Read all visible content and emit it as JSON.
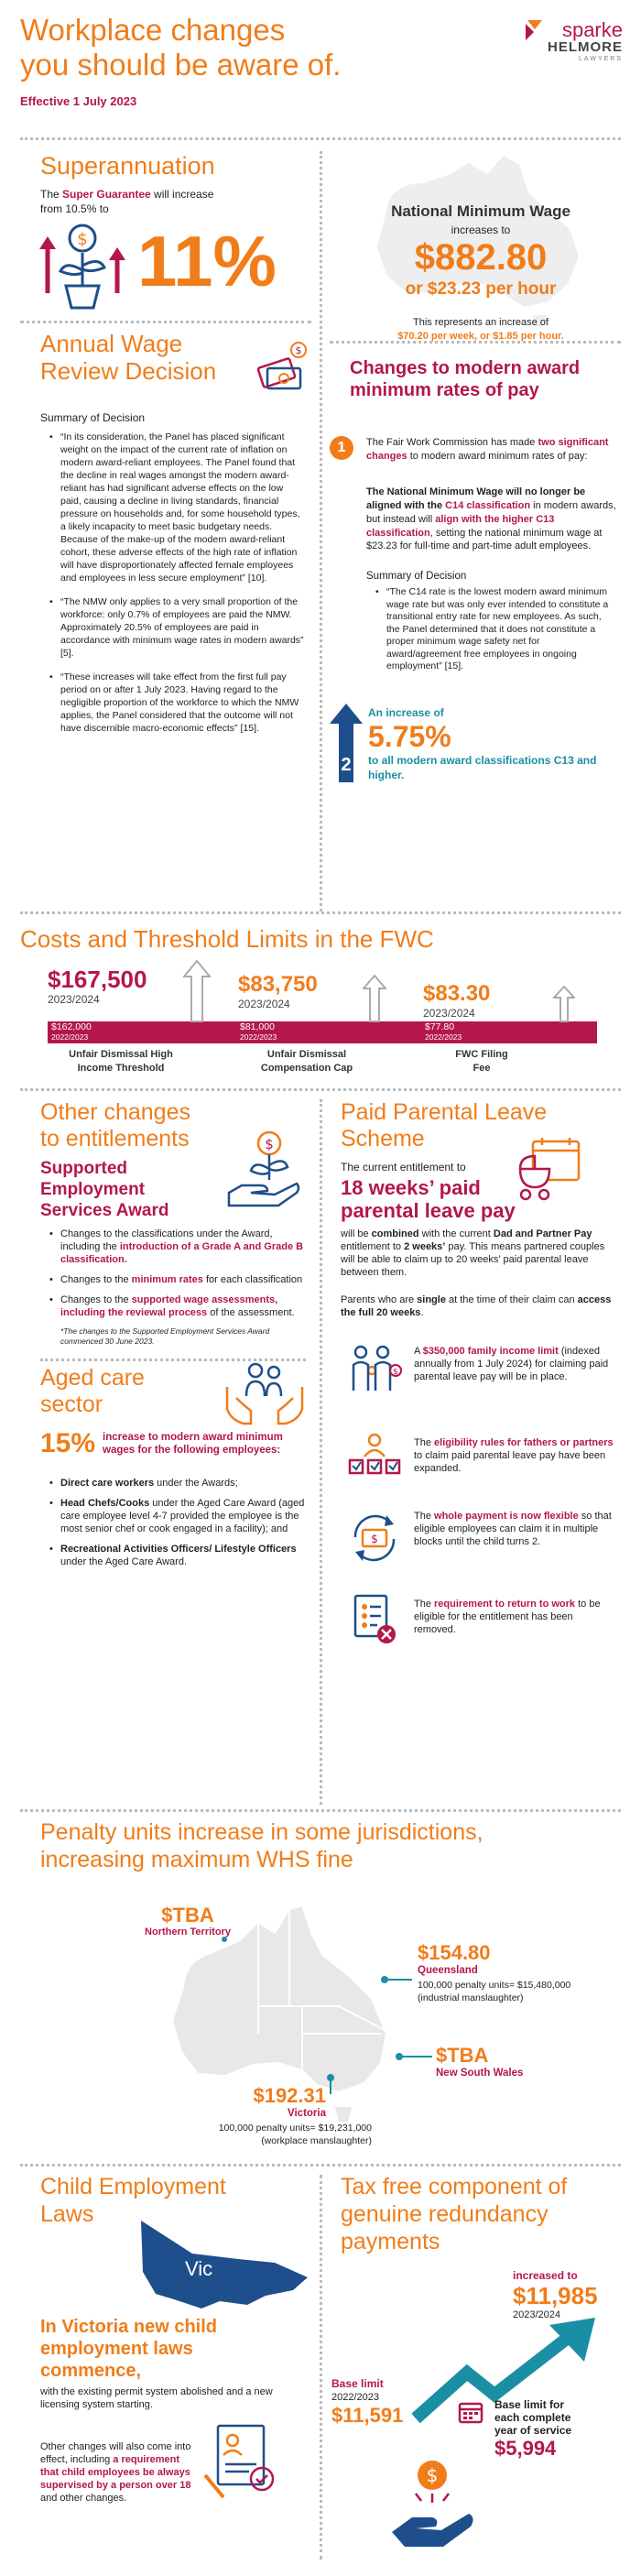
{
  "header": {
    "title_line1": "Workplace changes",
    "title_line2": "you should be aware of.",
    "effective": "Effective 1 July 2023",
    "logo_line1": "sparke",
    "logo_line2": "HELMORE",
    "logo_line3": "LAWYERS"
  },
  "superannuation": {
    "heading": "Superannuation",
    "text_pre": "The ",
    "text_highlight": "Super Guarantee",
    "text_post": " will increase from 10.5% to",
    "big_value": "11%"
  },
  "min_wage": {
    "title": "National Minimum Wage",
    "increases_to": "increases to",
    "big_value": "$882.80",
    "per_hour": "or $23.23 per hour",
    "note_pre": "This represents an increase of",
    "note_values": "$70.20 per week, or $1.85 per hour."
  },
  "annual_wage": {
    "heading_line1": "Annual Wage",
    "heading_line2": "Review Decision",
    "summary_label": "Summary of Decision",
    "bullets": [
      "“In its consideration, the Panel has placed significant weight on the impact of the current rate of inflation on modern award-reliant employees. The Panel found that the decline in real wages amongst the modern award-reliant has had significant adverse effects on the low paid, causing a decline in living standards, financial pressure on households and, for some household types, a likely incapacity to meet basic budgetary needs. Because of the make-up of the modern award-reliant cohort, these adverse effects of the high rate of inflation will have disproportionately affected female employees and employees in less secure employment” [10].",
      "“The NMW only applies to a very small proportion of the workforce: only 0.7% of employees are paid the NMW. Approximately 20.5% of employees are paid in accordance with minimum wage rates in modern awards” [5].",
      "“These increases will take effect from the first full pay period on or after 1 July 2023. Having regard to the negligible proportion of the workforce to which the NMW applies, the Panel considered that the outcome will not have discernible macro-economic effects” [15]."
    ]
  },
  "award_changes": {
    "heading": "Changes to modern award minimum rates of pay",
    "step1_number": "1",
    "step1_text_pre": "The Fair Work Commission has made ",
    "step1_highlight": "two significant changes",
    "step1_text_post": " to modern award minimum rates of pay:",
    "para_a1": "The National Minimum Wage",
    "para_a2": " will no longer be aligned with the ",
    "para_a3": "C14 classification",
    "para_a4": " in modern awards, but instead will ",
    "para_a5": "align with the higher C13 classification",
    "para_a6": ", setting the national minimum wage at $23.23 for full-time and part-time adult employees.",
    "summary_label": "Summary of Decision",
    "quote": "“The C14 rate is the lowest modern award minimum wage rate but was only ever intended to constitute a transitional entry rate for new employees. As such, the Panel determined that it does not constitute a proper minimum wage safety net for award/agreement free employees in ongoing employment” [15].",
    "step2_number": "2",
    "step2_pre": "An increase of",
    "step2_value": "5.75%",
    "step2_post": "to all modern award classifications C13 and higher."
  },
  "costs": {
    "heading": "Costs and Threshold Limits in the FWC",
    "items": [
      {
        "new_value": "$167,500",
        "new_year": "2023/2024",
        "old_value": "$162,000",
        "old_year": "2022/2023",
        "label_line1": "Unfair Dismissal High",
        "label_line2": "Income Threshold"
      },
      {
        "new_value": "$83,750",
        "new_year": "2023/2024",
        "old_value": "$81,000",
        "old_year": "2022/2023",
        "label_line1": "Unfair Dismissal",
        "label_line2": "Compensation Cap"
      },
      {
        "new_value": "$83.30",
        "new_year": "2023/2024",
        "old_value": "$77.80",
        "old_year": "2022/2023",
        "label_line1": "FWC Filing",
        "label_line2": "Fee"
      }
    ]
  },
  "other_changes": {
    "heading_line1": "Other changes",
    "heading_line2": "to entitlements",
    "sub_line1": "Supported",
    "sub_line2": "Employment",
    "sub_line3": "Services Award",
    "b1_pre": "Changes to the classifications under the Award, including the ",
    "b1_highlight": "introduction of a Grade A and Grade B classification.",
    "b2_pre": "Changes to the ",
    "b2_highlight": "minimum rates",
    "b2_post": " for each classification",
    "b3_pre": "Changes to the ",
    "b3_highlight": "supported wage assessments, including the reviewal process",
    "b3_post": " of the assessment.",
    "footnote": "*The changes to the Supported Employment Services Award commenced 30 June 2023."
  },
  "aged_care": {
    "heading_line1": "Aged care",
    "heading_line2": "sector",
    "pct": "15%",
    "lead": "increase to modern award minimum wages for the following employees:",
    "b1_bold": "Direct care workers",
    "b1_rest": " under the Awards;",
    "b2_bold": "Head Chefs/Cooks",
    "b2_rest": " under the Aged Care Award (aged care employee level 4-7 provided the employee is the most senior chef or cook engaged in a facility); and",
    "b3_bold": "Recreational Activities Officers/ Lifestyle Officers",
    "b3_rest": " under the Aged Care Award."
  },
  "parental_leave": {
    "heading_line1": "Paid Parental Leave",
    "heading_line2": "Scheme",
    "current": "The current entitlement to",
    "big_line1": "18 weeks’ paid",
    "big_line2": "parental leave pay",
    "p1_pre": "will be ",
    "p1_b1": "combined",
    "p1_mid": " with the current ",
    "p1_b2": "Dad and Partner Pay",
    "p1_mid2": " entitlement to ",
    "p1_b3": "2 weeks’",
    "p1_post": " pay. This means partnered couples will be able to claim up to 20 weeks’ paid parental leave between them.",
    "p2_pre": "Parents who are ",
    "p2_b1": "single",
    "p2_mid": " at the time of their claim can ",
    "p2_b2": "access the full 20 weeks",
    "p2_post": ".",
    "items": [
      {
        "pre": "A ",
        "highlight": "$350,000 family income limit",
        "post": " (indexed annually from 1 July 2024) for claiming paid parental leave pay will be in place."
      },
      {
        "pre": "The ",
        "highlight": "eligibility rules for fathers or partners",
        "post": " to claim paid parental leave pay have been expanded."
      },
      {
        "pre": "The ",
        "highlight": "whole payment is now flexible",
        "post": " so that eligible employees can claim it in multiple blocks until the child turns 2."
      },
      {
        "pre": "The ",
        "highlight": "requirement to return to work",
        "post": " to be eligible for the entitlement has been removed."
      }
    ]
  },
  "penalty": {
    "heading_line1": "Penalty units increase in some jurisdictions,",
    "heading_line2": "increasing maximum WHS fine",
    "nt_value": "$TBA",
    "nt_label": "Northern Territory",
    "qld_value": "$154.80",
    "qld_label": "Queensland",
    "qld_detail1": "100,000 penalty units= $15,480,000",
    "qld_detail2": "(industrial manslaughter)",
    "nsw_value": "$TBA",
    "nsw_label": "New South Wales",
    "vic_value": "$192.31",
    "vic_label": "Victoria",
    "vic_detail1": "100,000 penalty units= $19,231,000",
    "vic_detail2": "(workplace manslaughter)"
  },
  "child_laws": {
    "heading_line1": "Child Employment",
    "heading_line2": "Laws",
    "map_label": "Vic",
    "big_line1": "In Victoria new child",
    "big_line2": "employment laws",
    "big_line3": "commence,",
    "p1": "with the existing permit system abolished and a new licensing system starting.",
    "p2_pre": "Other changes will also come into effect, including ",
    "p2_highlight": "a requirement that child employees be always supervised by a person over 18",
    "p2_post": " and other changes."
  },
  "redundancy": {
    "heading_line1": "Tax free component of",
    "heading_line2": "genuine redundancy",
    "heading_line3": "payments",
    "inc_label": "increased to",
    "inc_value": "$11,985",
    "inc_year": "2023/2024",
    "base_label": "Base limit",
    "base_year": "2022/2023",
    "base_value": "$11,591",
    "per_year_line1": "Base limit for",
    "per_year_line2": "each complete",
    "per_year_line3": "year of service",
    "per_year_value": "$5,994"
  },
  "colors": {
    "orange": "#f07d1a",
    "crimson": "#b3174b",
    "navy": "#1f4e8c",
    "teal": "#1a8fa3",
    "grey": "#bbbbbb"
  }
}
